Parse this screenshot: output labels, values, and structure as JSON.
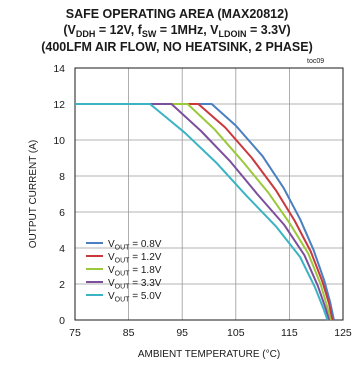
{
  "chart_data": {
    "type": "line",
    "title": "SAFE OPERATING AREA (MAX20812)",
    "subtitle_parts": {
      "v_ddh": "DDH",
      "v_ddh_value": " = 12V, f",
      "f_sw": "SW",
      "f_sw_value": " = 1MHz, V",
      "v_ldoin": "LDOIN",
      "v_ldoin_value": " = 3.3V)"
    },
    "subtitle2": "(400LFM AIR FLOW, NO HEATSINK, 2 PHASE)",
    "figure_id": "toc09",
    "xlabel": "AMBIENT TEMPERATURE (°C)",
    "ylabel": "OUTPUT CURRENT (A)",
    "xlim": [
      75,
      125
    ],
    "ylim": [
      0,
      14
    ],
    "xticks": [
      "75",
      "85",
      "95",
      "105",
      "115",
      "125"
    ],
    "yticks": [
      "0",
      "2",
      "4",
      "6",
      "8",
      "10",
      "12",
      "14"
    ],
    "grid": true,
    "legend_position": "bottom-left",
    "series": [
      {
        "name_main": "V",
        "name_sub": "OUT",
        "name_rest": " = 0.8V",
        "color": "#4a7fc1",
        "x": [
          75,
          100.5,
          105,
          110,
          114,
          117,
          119.5,
          121.5,
          122.6,
          123.3
        ],
        "y": [
          12,
          12,
          10.8,
          9.1,
          7.3,
          5.6,
          3.9,
          2.2,
          1.0,
          0
        ]
      },
      {
        "name_main": "V",
        "name_sub": "OUT",
        "name_rest": " = 1.2V",
        "color": "#c8383d",
        "x": [
          75,
          98,
          103,
          108,
          112.5,
          116,
          119,
          121.2,
          122.4,
          123.0
        ],
        "y": [
          12,
          12,
          10.7,
          9.0,
          7.2,
          5.5,
          3.8,
          2.1,
          0.9,
          0
        ]
      },
      {
        "name_main": "V",
        "name_sub": "OUT",
        "name_rest": " = 1.8V",
        "color": "#9cc83c",
        "x": [
          75,
          96,
          101,
          106,
          111,
          115,
          118.5,
          120.8,
          122.0,
          122.7
        ],
        "y": [
          12,
          12,
          10.6,
          8.9,
          7.1,
          5.4,
          3.7,
          2.0,
          0.8,
          0
        ]
      },
      {
        "name_main": "V",
        "name_sub": "OUT",
        "name_rest": " = 3.3V",
        "color": "#7c4f9d",
        "x": [
          75,
          93,
          98.5,
          104,
          109,
          114,
          117.8,
          120.3,
          121.7,
          122.4
        ],
        "y": [
          12,
          12,
          10.5,
          8.8,
          7.0,
          5.3,
          3.6,
          1.9,
          0.7,
          0
        ]
      },
      {
        "name_main": "V",
        "name_sub": "OUT",
        "name_rest": " = 5.0V",
        "color": "#3bb3c3",
        "x": [
          75,
          89,
          95.5,
          101.5,
          107,
          112.5,
          117,
          119.8,
          121.4,
          122.1
        ],
        "y": [
          12,
          12,
          10.4,
          8.7,
          6.9,
          5.2,
          3.5,
          1.8,
          0.6,
          0
        ]
      }
    ]
  }
}
